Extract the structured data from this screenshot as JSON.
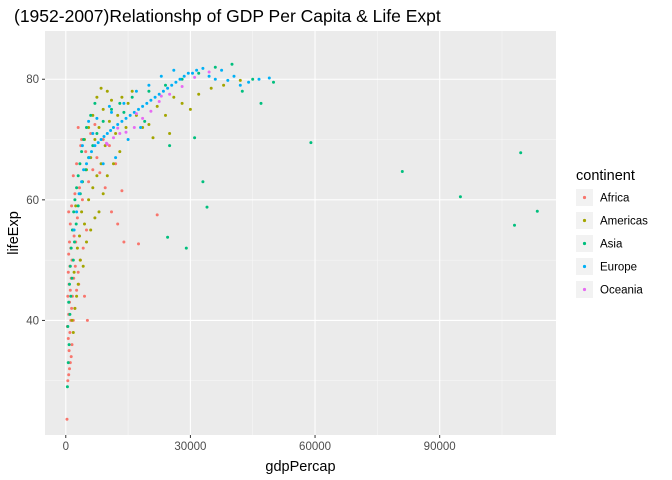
{
  "chart_data": {
    "type": "scatter",
    "title": "(1952-2007)Relationshp of GDP Per Capita & Life Expt",
    "xlabel": "gdpPercap",
    "ylabel": "lifeExp",
    "xlim": [
      -5000,
      118000
    ],
    "ylim": [
      21,
      88
    ],
    "xticks": [
      0,
      30000,
      60000,
      90000
    ],
    "xtick_labels": [
      "0",
      "30000",
      "60000",
      "90000"
    ],
    "yticks": [
      40,
      60,
      80
    ],
    "ytick_labels": [
      "40",
      "60",
      "80"
    ],
    "grid": true,
    "legend": {
      "title": "continent",
      "position": "right",
      "items": [
        {
          "name": "Africa",
          "color": "#F8766D"
        },
        {
          "name": "Americas",
          "color": "#A3A500"
        },
        {
          "name": "Asia",
          "color": "#00BF7D"
        },
        {
          "name": "Europe",
          "color": "#00B0F6"
        },
        {
          "name": "Oceania",
          "color": "#E76BF3"
        }
      ]
    },
    "series": [
      {
        "name": "Africa",
        "points": [
          [
            300,
            23.6
          ],
          [
            500,
            30
          ],
          [
            700,
            31
          ],
          [
            900,
            32
          ],
          [
            1100,
            33
          ],
          [
            1300,
            34
          ],
          [
            800,
            35
          ],
          [
            1500,
            36
          ],
          [
            600,
            37
          ],
          [
            1000,
            38
          ],
          [
            400,
            39
          ],
          [
            1200,
            40
          ],
          [
            1800,
            40
          ],
          [
            700,
            41
          ],
          [
            1400,
            42
          ],
          [
            2200,
            42
          ],
          [
            900,
            43
          ],
          [
            500,
            44
          ],
          [
            1600,
            44
          ],
          [
            1100,
            45
          ],
          [
            2600,
            45
          ],
          [
            800,
            46
          ],
          [
            1300,
            47
          ],
          [
            1900,
            47
          ],
          [
            3000,
            48
          ],
          [
            600,
            48
          ],
          [
            1000,
            49
          ],
          [
            2300,
            49
          ],
          [
            1500,
            50
          ],
          [
            700,
            51
          ],
          [
            3500,
            50
          ],
          [
            1200,
            52
          ],
          [
            4200,
            52
          ],
          [
            900,
            53
          ],
          [
            2000,
            54
          ],
          [
            1700,
            55
          ],
          [
            5000,
            55
          ],
          [
            1100,
            56
          ],
          [
            2800,
            57
          ],
          [
            700,
            58
          ],
          [
            1400,
            59
          ],
          [
            4000,
            60
          ],
          [
            2200,
            61
          ],
          [
            3300,
            62
          ],
          [
            5500,
            63
          ],
          [
            1800,
            64
          ],
          [
            6500,
            65
          ],
          [
            2600,
            66
          ],
          [
            7500,
            67
          ],
          [
            4800,
            68
          ],
          [
            3600,
            69
          ],
          [
            9000,
            70
          ],
          [
            6000,
            71
          ],
          [
            3000,
            72
          ],
          [
            11000,
            58
          ],
          [
            12500,
            56
          ],
          [
            14000,
            53
          ],
          [
            17500,
            52.7
          ],
          [
            22000,
            57.5
          ],
          [
            13500,
            61.5
          ],
          [
            10500,
            69
          ],
          [
            8200,
            64.5
          ],
          [
            9500,
            62
          ],
          [
            12000,
            66
          ],
          [
            7000,
            72.5
          ],
          [
            3800,
            70
          ],
          [
            2400,
            53
          ],
          [
            3100,
            46
          ],
          [
            4500,
            44
          ],
          [
            5200,
            40
          ]
        ]
      },
      {
        "name": "Americas",
        "points": [
          [
            1500,
            40
          ],
          [
            1800,
            38
          ],
          [
            2200,
            42
          ],
          [
            2600,
            44
          ],
          [
            3000,
            46
          ],
          [
            2000,
            48
          ],
          [
            3500,
            50
          ],
          [
            4200,
            49
          ],
          [
            2800,
            52
          ],
          [
            5000,
            53
          ],
          [
            3300,
            54
          ],
          [
            6000,
            55
          ],
          [
            4500,
            56
          ],
          [
            7000,
            57
          ],
          [
            3800,
            58
          ],
          [
            8000,
            58
          ],
          [
            5500,
            60
          ],
          [
            2400,
            59
          ],
          [
            9000,
            61
          ],
          [
            6500,
            62
          ],
          [
            4000,
            63
          ],
          [
            10000,
            64
          ],
          [
            7500,
            64
          ],
          [
            5000,
            65
          ],
          [
            11500,
            66
          ],
          [
            8500,
            66
          ],
          [
            6000,
            67
          ],
          [
            13000,
            68
          ],
          [
            9500,
            69
          ],
          [
            7000,
            70
          ],
          [
            4500,
            70
          ],
          [
            12000,
            71
          ],
          [
            8000,
            72
          ],
          [
            5500,
            72
          ],
          [
            14500,
            72
          ],
          [
            10500,
            73
          ],
          [
            6500,
            74
          ],
          [
            12500,
            74
          ],
          [
            9000,
            75
          ],
          [
            15000,
            76
          ],
          [
            11000,
            76.5
          ],
          [
            7500,
            77
          ],
          [
            13500,
            77
          ],
          [
            16000,
            78
          ],
          [
            20000,
            72.5
          ],
          [
            24000,
            74
          ],
          [
            28000,
            76
          ],
          [
            32000,
            77.5
          ],
          [
            35000,
            78.5
          ],
          [
            38000,
            79
          ],
          [
            42000,
            79.8
          ],
          [
            30000,
            75
          ],
          [
            26000,
            77
          ],
          [
            22000,
            75.5
          ],
          [
            17000,
            74
          ],
          [
            18500,
            72
          ],
          [
            21000,
            70.3
          ],
          [
            25000,
            71
          ],
          [
            8500,
            78.5
          ],
          [
            10000,
            78
          ]
        ]
      },
      {
        "name": "Asia",
        "points": [
          [
            400,
            29
          ],
          [
            600,
            33
          ],
          [
            800,
            36
          ],
          [
            500,
            39
          ],
          [
            1000,
            41
          ],
          [
            700,
            43
          ],
          [
            1200,
            44
          ],
          [
            900,
            46
          ],
          [
            1500,
            47
          ],
          [
            1100,
            49
          ],
          [
            1800,
            50
          ],
          [
            1300,
            52
          ],
          [
            2100,
            53
          ],
          [
            1600,
            55
          ],
          [
            2500,
            56
          ],
          [
            1900,
            58
          ],
          [
            3000,
            59
          ],
          [
            2200,
            60
          ],
          [
            3500,
            61
          ],
          [
            2600,
            62
          ],
          [
            4000,
            63
          ],
          [
            3000,
            64
          ],
          [
            4800,
            65
          ],
          [
            3400,
            66
          ],
          [
            5500,
            67
          ],
          [
            3800,
            68
          ],
          [
            6500,
            69
          ],
          [
            4300,
            70
          ],
          [
            7500,
            71
          ],
          [
            5000,
            72
          ],
          [
            9000,
            73
          ],
          [
            6000,
            74
          ],
          [
            11000,
            75
          ],
          [
            7000,
            76
          ],
          [
            13000,
            76
          ],
          [
            16000,
            77
          ],
          [
            20000,
            78
          ],
          [
            24000,
            79
          ],
          [
            28000,
            80
          ],
          [
            32000,
            81
          ],
          [
            36000,
            82
          ],
          [
            40000,
            82.5
          ],
          [
            14000,
            74.5
          ],
          [
            19000,
            73
          ],
          [
            25000,
            69
          ],
          [
            31000,
            70.3
          ],
          [
            33000,
            63
          ],
          [
            34000,
            58.8
          ],
          [
            29000,
            52
          ],
          [
            24500,
            53.8
          ],
          [
            59000,
            69.5
          ],
          [
            81000,
            64.7
          ],
          [
            95000,
            60.5
          ],
          [
            108000,
            55.8
          ],
          [
            109500,
            67.8
          ],
          [
            113500,
            58.1
          ],
          [
            47000,
            76
          ],
          [
            50000,
            79.5
          ],
          [
            45000,
            80
          ],
          [
            42500,
            78
          ]
        ]
      },
      {
        "name": "Europe",
        "points": [
          [
            2000,
            55
          ],
          [
            2600,
            58
          ],
          [
            3200,
            61
          ],
          [
            3800,
            63
          ],
          [
            4300,
            65
          ],
          [
            5000,
            66
          ],
          [
            5600,
            67
          ],
          [
            6200,
            68
          ],
          [
            7000,
            69
          ],
          [
            7800,
            69.5
          ],
          [
            8500,
            70
          ],
          [
            9200,
            70.5
          ],
          [
            10000,
            71
          ],
          [
            10800,
            71.5
          ],
          [
            11500,
            72
          ],
          [
            12500,
            72.5
          ],
          [
            13500,
            73
          ],
          [
            14500,
            73.5
          ],
          [
            15500,
            74
          ],
          [
            16500,
            74.5
          ],
          [
            17500,
            75
          ],
          [
            18500,
            75.5
          ],
          [
            19500,
            76
          ],
          [
            20500,
            76.5
          ],
          [
            21500,
            77
          ],
          [
            22500,
            77.5
          ],
          [
            23500,
            78
          ],
          [
            24500,
            78.5
          ],
          [
            25500,
            79
          ],
          [
            26500,
            79.5
          ],
          [
            27500,
            80
          ],
          [
            28500,
            80.5
          ],
          [
            29500,
            81
          ],
          [
            30500,
            81
          ],
          [
            31500,
            81.5
          ],
          [
            33000,
            81.8
          ],
          [
            34500,
            80.5
          ],
          [
            36000,
            80
          ],
          [
            37500,
            81.5
          ],
          [
            39000,
            79.8
          ],
          [
            40500,
            80.5
          ],
          [
            42000,
            79
          ],
          [
            44000,
            79.5
          ],
          [
            46500,
            80
          ],
          [
            49000,
            80.2
          ],
          [
            12000,
            67
          ],
          [
            9000,
            66
          ],
          [
            6500,
            71
          ],
          [
            15000,
            70
          ],
          [
            18000,
            72
          ],
          [
            5500,
            73
          ],
          [
            11000,
            74.5
          ],
          [
            14000,
            76
          ],
          [
            17000,
            78
          ],
          [
            20000,
            79
          ],
          [
            23000,
            80.5
          ],
          [
            26000,
            81.5
          ],
          [
            4000,
            69
          ],
          [
            7500,
            73.5
          ],
          [
            10500,
            75.5
          ]
        ]
      },
      {
        "name": "Oceania",
        "points": [
          [
            10000,
            69.2
          ],
          [
            11500,
            70.3
          ],
          [
            13000,
            71
          ],
          [
            14500,
            71.2
          ],
          [
            16500,
            72
          ],
          [
            18500,
            73.5
          ],
          [
            20500,
            74.7
          ],
          [
            22500,
            76.3
          ],
          [
            25000,
            77.5
          ],
          [
            28000,
            78.8
          ],
          [
            31000,
            80.3
          ],
          [
            34500,
            81.2
          ],
          [
            9800,
            69.4
          ],
          [
            12500,
            71.9
          ],
          [
            17000,
            74.3
          ],
          [
            23000,
            77.2
          ]
        ]
      }
    ]
  }
}
